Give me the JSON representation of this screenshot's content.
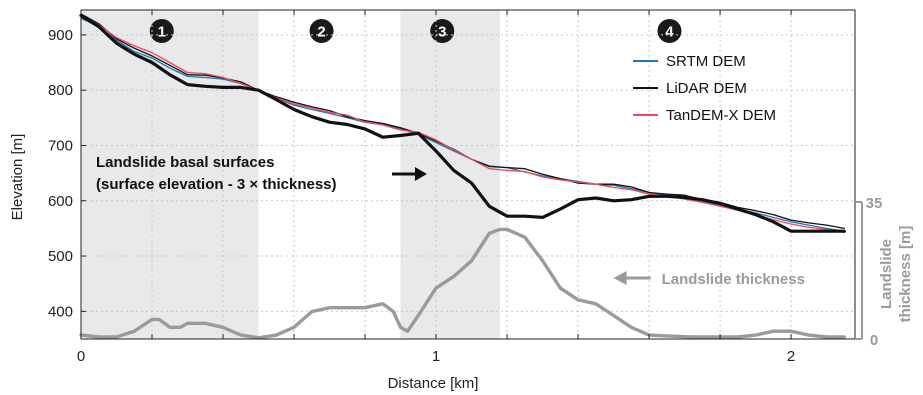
{
  "chart_data": {
    "type": "line",
    "xlabel": "Distance [km]",
    "ylabel": "Elevation [m]",
    "right_axis_label_lines": [
      "Landslide",
      "thickness [m]"
    ],
    "xlim": [
      0,
      2.18
    ],
    "ylim": [
      350,
      945
    ],
    "x_ticks": [
      0,
      0.2,
      0.4,
      0.6,
      0.8,
      1,
      1.2,
      1.4,
      1.6,
      1.8,
      2
    ],
    "x_tick_labels": [
      {
        "value": 0,
        "label": "0"
      },
      {
        "value": 1,
        "label": "1"
      },
      {
        "value": 2,
        "label": "2"
      }
    ],
    "y_ticks": [
      400,
      500,
      600,
      700,
      800,
      900
    ],
    "y_tick_labels": [
      {
        "value": 400,
        "label": "400"
      },
      {
        "value": 500,
        "label": "500"
      },
      {
        "value": 600,
        "label": "600"
      },
      {
        "value": 700,
        "label": "700"
      },
      {
        "value": 800,
        "label": "800"
      },
      {
        "value": 900,
        "label": "900"
      }
    ],
    "right_axis": {
      "range": [
        0,
        35
      ],
      "tick_labels": [
        {
          "value": 0,
          "label": "0"
        },
        {
          "value": 35,
          "label": "35"
        }
      ],
      "color": "#9a9a9a"
    },
    "grid": true,
    "legend_position": "top-right",
    "zones": [
      {
        "label": "1",
        "x0": 0,
        "x1": 0.5,
        "shaded": true
      },
      {
        "label": "2",
        "x0": 0.5,
        "x1": 0.9,
        "shaded": false
      },
      {
        "label": "3",
        "x0": 0.9,
        "x1": 1.18,
        "shaded": true
      },
      {
        "label": "4",
        "x0": 1.18,
        "x1": 2.18,
        "shaded": false
      }
    ],
    "series": [
      {
        "name": "SRTM DEM",
        "color": "#1f77b4",
        "width": 1.3,
        "x": [
          0,
          0.05,
          0.1,
          0.15,
          0.2,
          0.25,
          0.3,
          0.35,
          0.4,
          0.45,
          0.5,
          0.55,
          0.6,
          0.65,
          0.7,
          0.75,
          0.8,
          0.85,
          0.9,
          0.95,
          1.0,
          1.05,
          1.1,
          1.15,
          1.2,
          1.25,
          1.3,
          1.35,
          1.4,
          1.45,
          1.5,
          1.55,
          1.6,
          1.65,
          1.7,
          1.75,
          1.8,
          1.85,
          1.9,
          1.95,
          2.0,
          2.05,
          2.1,
          2.15
        ],
        "values": [
          930,
          915,
          890,
          870,
          858,
          840,
          825,
          823,
          820,
          812,
          800,
          785,
          773,
          765,
          758,
          750,
          742,
          738,
          730,
          720,
          705,
          690,
          675,
          663,
          660,
          652,
          645,
          640,
          635,
          630,
          628,
          622,
          615,
          610,
          605,
          598,
          592,
          585,
          578,
          570,
          562,
          556,
          550,
          545
        ]
      },
      {
        "name": "LiDAR DEM",
        "color": "#111111",
        "width": 1.3,
        "x": [
          0,
          0.05,
          0.1,
          0.15,
          0.2,
          0.25,
          0.3,
          0.35,
          0.4,
          0.45,
          0.5,
          0.55,
          0.6,
          0.65,
          0.7,
          0.75,
          0.8,
          0.85,
          0.9,
          0.95,
          1.0,
          1.05,
          1.1,
          1.15,
          1.2,
          1.25,
          1.3,
          1.35,
          1.4,
          1.45,
          1.5,
          1.55,
          1.6,
          1.65,
          1.7,
          1.75,
          1.8,
          1.85,
          1.9,
          1.95,
          2.0,
          2.05,
          2.1,
          2.15
        ],
        "values": [
          938,
          920,
          893,
          876,
          862,
          845,
          828,
          827,
          822,
          815,
          800,
          788,
          778,
          770,
          763,
          752,
          745,
          740,
          732,
          722,
          708,
          693,
          675,
          662,
          660,
          658,
          648,
          640,
          632,
          630,
          630,
          625,
          615,
          612,
          610,
          602,
          597,
          588,
          582,
          575,
          565,
          560,
          556,
          550
        ]
      },
      {
        "name": "TanDEM-X DEM",
        "color": "#f0485a",
        "width": 1.3,
        "x": [
          0,
          0.05,
          0.1,
          0.15,
          0.2,
          0.25,
          0.3,
          0.35,
          0.4,
          0.45,
          0.5,
          0.55,
          0.6,
          0.65,
          0.7,
          0.75,
          0.8,
          0.85,
          0.9,
          0.95,
          1.0,
          1.05,
          1.1,
          1.15,
          1.2,
          1.25,
          1.3,
          1.35,
          1.4,
          1.45,
          1.5,
          1.55,
          1.6,
          1.65,
          1.7,
          1.75,
          1.8,
          1.85,
          1.9,
          1.95,
          2.0,
          2.05,
          2.1,
          2.15
        ],
        "values": [
          935,
          918,
          895,
          880,
          868,
          850,
          832,
          830,
          823,
          812,
          800,
          786,
          775,
          768,
          760,
          755,
          742,
          737,
          728,
          724,
          710,
          692,
          675,
          658,
          655,
          653,
          643,
          638,
          634,
          630,
          624,
          620,
          612,
          608,
          603,
          597,
          590,
          583,
          574,
          566,
          558,
          552,
          548,
          543
        ]
      },
      {
        "name": "Landslide basal surfaces",
        "color": "#111111",
        "width": 3.2,
        "x": [
          0,
          0.05,
          0.1,
          0.15,
          0.2,
          0.25,
          0.3,
          0.35,
          0.4,
          0.45,
          0.5,
          0.55,
          0.6,
          0.65,
          0.7,
          0.75,
          0.8,
          0.85,
          0.9,
          0.95,
          1.0,
          1.05,
          1.1,
          1.15,
          1.2,
          1.25,
          1.3,
          1.35,
          1.4,
          1.45,
          1.5,
          1.55,
          1.6,
          1.65,
          1.7,
          1.75,
          1.8,
          1.85,
          1.9,
          1.95,
          2.0,
          2.05,
          2.1,
          2.15
        ],
        "values": [
          935,
          915,
          885,
          865,
          850,
          828,
          810,
          807,
          805,
          805,
          800,
          783,
          765,
          752,
          742,
          738,
          730,
          715,
          718,
          722,
          690,
          655,
          632,
          590,
          572,
          572,
          570,
          585,
          602,
          605,
          600,
          602,
          608,
          608,
          606,
          602,
          595,
          585,
          575,
          562,
          545,
          545,
          545,
          545
        ]
      },
      {
        "name": "Landslide thickness",
        "axis": "right",
        "color": "#9a9a9a",
        "width": 3.4,
        "x": [
          0,
          0.05,
          0.1,
          0.15,
          0.2,
          0.22,
          0.25,
          0.28,
          0.3,
          0.33,
          0.35,
          0.4,
          0.45,
          0.5,
          0.55,
          0.6,
          0.65,
          0.7,
          0.75,
          0.8,
          0.85,
          0.88,
          0.9,
          0.92,
          0.95,
          1.0,
          1.05,
          1.1,
          1.15,
          1.18,
          1.2,
          1.25,
          1.3,
          1.35,
          1.4,
          1.45,
          1.5,
          1.55,
          1.6,
          1.65,
          1.7,
          1.75,
          1.8,
          1.85,
          1.9,
          1.95,
          2.0,
          2.05,
          2.1,
          2.15
        ],
        "values": [
          1,
          0.5,
          0.5,
          2,
          5,
          5,
          3,
          3,
          4,
          4,
          4,
          3,
          1,
          0.3,
          1,
          3,
          7,
          8,
          8,
          8,
          9,
          7,
          3,
          2,
          6,
          13,
          16,
          20,
          27,
          28,
          28,
          26,
          20,
          13,
          10,
          9,
          6,
          3,
          1,
          0.8,
          0.6,
          0.5,
          0.5,
          0.5,
          1,
          2,
          2,
          1,
          0.5,
          0.5
        ]
      }
    ],
    "annotations": [
      {
        "text_lines": [
          "Landslide basal surfaces",
          "(surface elevation - 3 × thickness)"
        ],
        "color": "#111111",
        "arrow_to": {
          "x": 0.98,
          "y": 680
        }
      },
      {
        "text_lines": [
          "Landslide thickness"
        ],
        "color": "#9a9a9a",
        "arrow_to": {
          "x": 1.5,
          "y": 458
        }
      }
    ]
  }
}
